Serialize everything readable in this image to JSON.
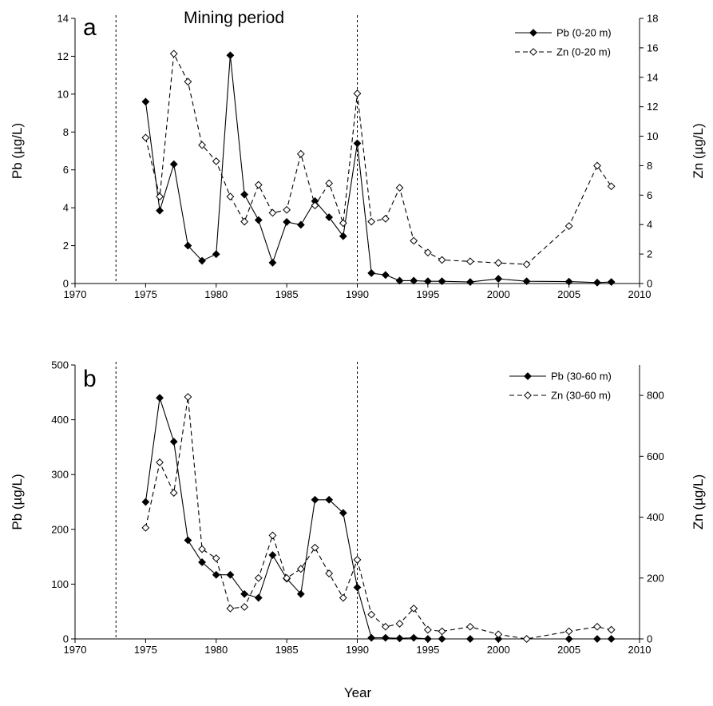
{
  "figure": {
    "mining_period_label": "Mining period",
    "x_axis_title": "Year",
    "mining_period_markers": [
      1972.9,
      1990
    ]
  },
  "chart_data": [
    {
      "type": "line",
      "panel_label": "a",
      "x": [
        1975,
        1976,
        1977,
        1978,
        1979,
        1980,
        1981,
        1982,
        1983,
        1984,
        1985,
        1986,
        1987,
        1988,
        1989,
        1990,
        1991,
        1992,
        1993,
        1994,
        1995,
        1996,
        1998,
        2000,
        2002,
        2005,
        2007,
        2008
      ],
      "xlim": [
        1970,
        2010
      ],
      "xticks": [
        1970,
        1975,
        1980,
        1985,
        1990,
        1995,
        2000,
        2005,
        2010
      ],
      "ylabel": "Pb (µg/L)",
      "ylim": [
        0,
        14
      ],
      "yticks": [
        0,
        2,
        4,
        6,
        8,
        10,
        12,
        14
      ],
      "y2label": "Zn (µg/L)",
      "y2lim": [
        0,
        18
      ],
      "y2ticks": [
        0,
        2,
        4,
        6,
        8,
        10,
        12,
        14,
        16,
        18
      ],
      "legend_position": "top-right",
      "series": [
        {
          "name": "Pb (0-20 m)",
          "axis": "left",
          "line_style": "solid",
          "marker": "filled-diamond",
          "values": [
            9.6,
            3.85,
            6.3,
            2.0,
            1.2,
            1.55,
            12.05,
            4.7,
            3.35,
            1.1,
            3.25,
            3.1,
            4.35,
            3.5,
            2.5,
            7.4,
            0.55,
            0.45,
            0.15,
            0.15,
            0.12,
            0.12,
            0.08,
            0.25,
            0.12,
            0.1,
            0.05,
            0.08
          ]
        },
        {
          "name": "Zn (0-20 m)",
          "axis": "right",
          "line_style": "dashed",
          "marker": "open-diamond",
          "values": [
            9.9,
            5.9,
            15.6,
            13.7,
            9.4,
            8.3,
            5.9,
            4.2,
            6.7,
            4.8,
            5.0,
            8.8,
            5.3,
            6.8,
            4.1,
            12.9,
            4.2,
            4.4,
            6.5,
            2.9,
            2.1,
            1.6,
            1.5,
            1.4,
            1.3,
            3.9,
            8.0,
            6.6
          ]
        }
      ]
    },
    {
      "type": "line",
      "panel_label": "b",
      "x": [
        1975,
        1976,
        1977,
        1978,
        1979,
        1980,
        1981,
        1982,
        1983,
        1984,
        1985,
        1986,
        1987,
        1988,
        1989,
        1990,
        1991,
        1992,
        1993,
        1994,
        1995,
        1996,
        1998,
        2000,
        2002,
        2005,
        2007,
        2008
      ],
      "xlim": [
        1970,
        2010
      ],
      "xticks": [
        1970,
        1975,
        1980,
        1985,
        1990,
        1995,
        2000,
        2005,
        2010
      ],
      "ylabel": "Pb (µg/L)",
      "ylim": [
        0,
        500
      ],
      "yticks": [
        0,
        100,
        200,
        300,
        400,
        500
      ],
      "y2label": "Zn (µg/L)",
      "y2lim": [
        0,
        900
      ],
      "y2ticks": [
        0,
        200,
        400,
        600,
        800
      ],
      "legend_position": "top-right",
      "series": [
        {
          "name": "Pb (30-60 m)",
          "axis": "left",
          "line_style": "solid",
          "marker": "filled-diamond",
          "values": [
            250,
            440,
            360,
            180,
            140,
            117,
            117,
            82,
            75,
            153,
            110,
            82,
            254,
            254,
            230,
            94,
            2,
            2,
            1,
            2,
            0,
            0,
            0,
            0,
            0,
            0,
            0,
            0
          ]
        },
        {
          "name": "Zn (30-60 m)",
          "axis": "right",
          "line_style": "dashed",
          "marker": "open-diamond",
          "values": [
            365,
            580,
            480,
            795,
            295,
            265,
            100,
            105,
            200,
            340,
            200,
            230,
            300,
            215,
            135,
            260,
            80,
            40,
            50,
            100,
            30,
            25,
            40,
            15,
            0,
            25,
            40,
            30
          ]
        }
      ]
    }
  ]
}
